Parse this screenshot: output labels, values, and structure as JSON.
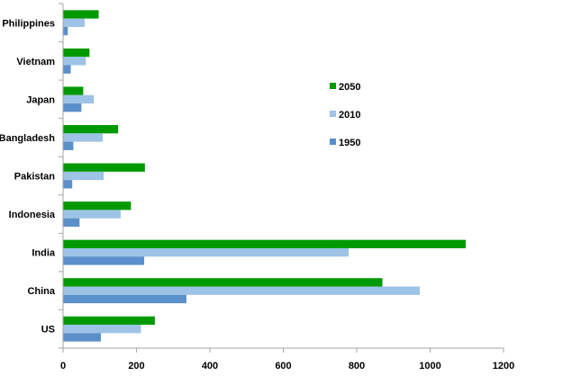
{
  "chart_data": {
    "type": "bar",
    "orientation": "horizontal",
    "categories": [
      "US",
      "China",
      "India",
      "Indonesia",
      "Pakistan",
      "Bangladesh",
      "Japan",
      "Vietnam",
      "Philippines"
    ],
    "series": [
      {
        "name": "2050",
        "color": "#009900",
        "values": [
          250,
          870,
          1097,
          185,
          223,
          150,
          55,
          72,
          97
        ]
      },
      {
        "name": "2010",
        "color": "#9DC3E6",
        "values": [
          212,
          972,
          778,
          157,
          111,
          108,
          84,
          62,
          59
        ]
      },
      {
        "name": "1950",
        "color": "#5B8FC9",
        "values": [
          103,
          336,
          221,
          45,
          25,
          28,
          50,
          21,
          13
        ]
      }
    ],
    "x_ticks": [
      "0",
      "200",
      "400",
      "600",
      "800",
      "1000",
      "1200"
    ],
    "xlim": [
      0,
      1200
    ],
    "grid": false,
    "legend_placement": "right",
    "title": "",
    "xlabel": "",
    "ylabel": ""
  }
}
